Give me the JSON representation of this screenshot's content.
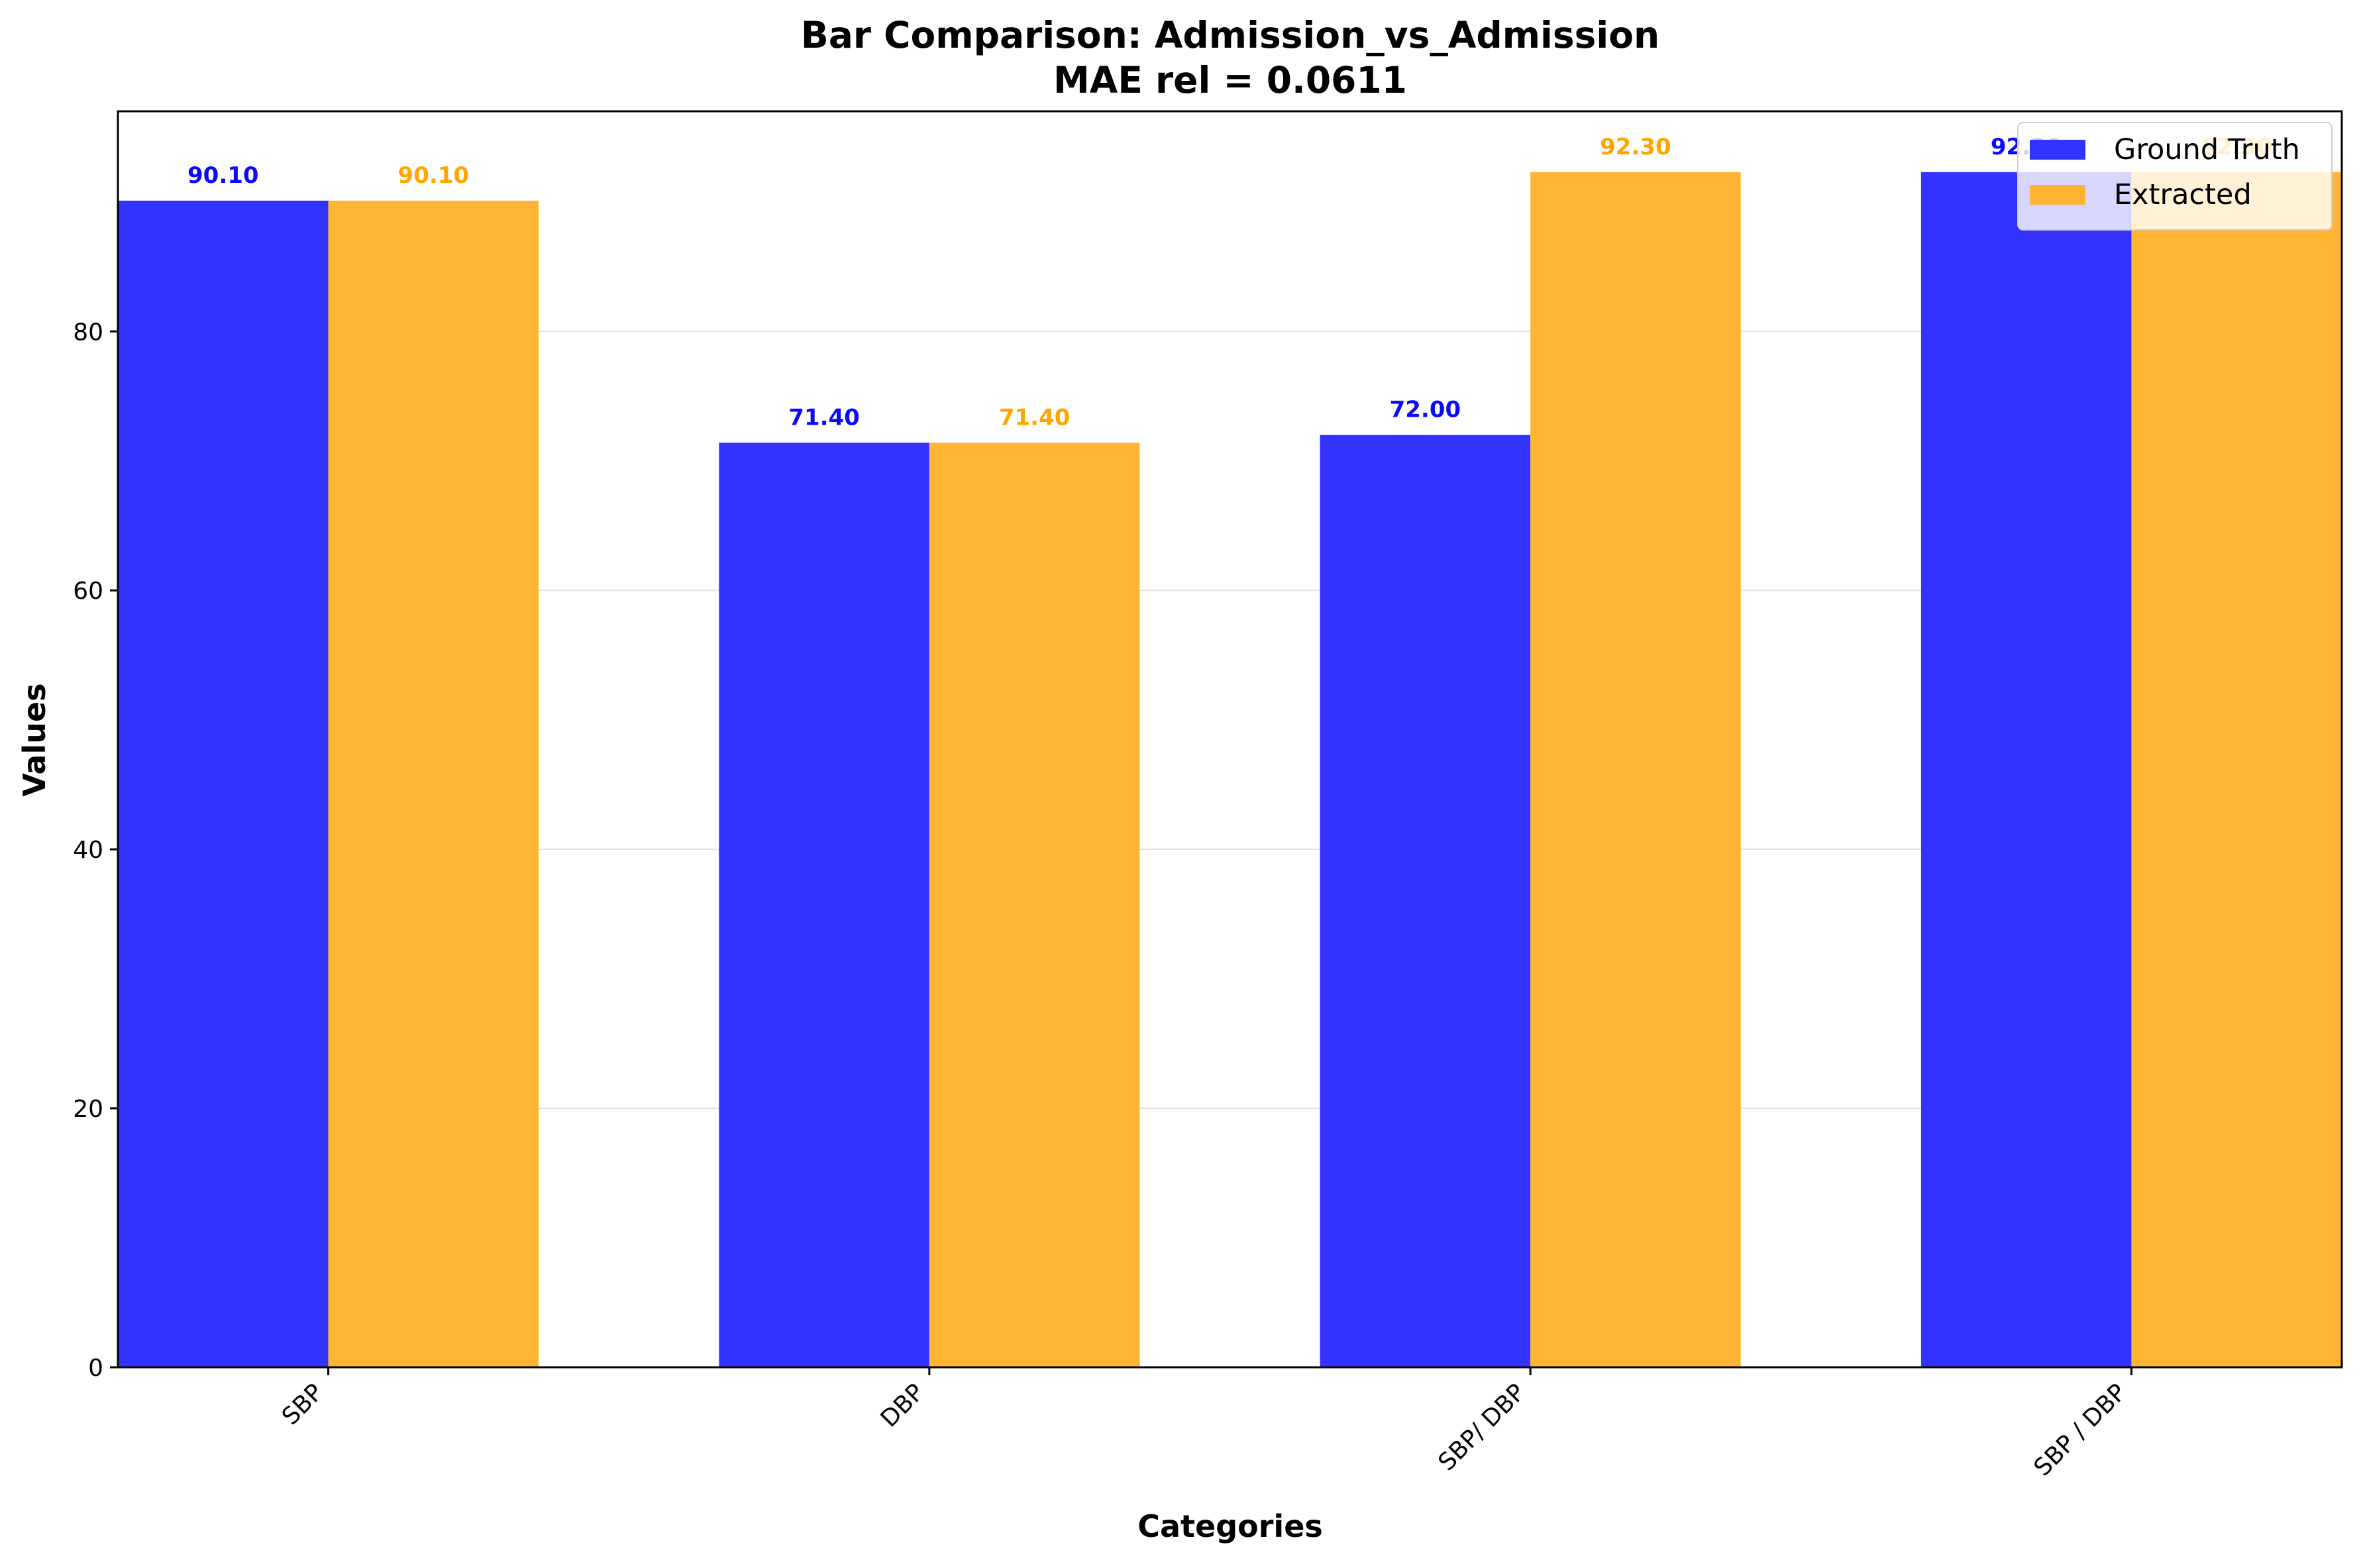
{
  "chart_data": {
    "type": "bar",
    "title": "Bar Comparison: Admission_vs_Admission",
    "subtitle": "MAE rel = 0.0611",
    "xlabel": "Categories",
    "ylabel": "Values",
    "categories": [
      "SBP",
      "DBP",
      "SBP/ DBP",
      "SBP / DBP"
    ],
    "series": [
      {
        "name": "Ground Truth",
        "color": "#3333ff",
        "values": [
          90.1,
          71.4,
          72.0,
          92.3
        ],
        "labels": [
          "90.10",
          "71.40",
          "72.00",
          "92.30"
        ]
      },
      {
        "name": "Extracted",
        "color": "#ffb533",
        "values": [
          90.1,
          71.4,
          92.3,
          92.3
        ],
        "labels": [
          "90.10",
          "71.40",
          "92.30",
          "92.30"
        ]
      }
    ],
    "ylim": [
      0,
      97
    ],
    "yticks": [
      0,
      20,
      40,
      60,
      80
    ],
    "grid": true,
    "legend_position": "top-right"
  }
}
